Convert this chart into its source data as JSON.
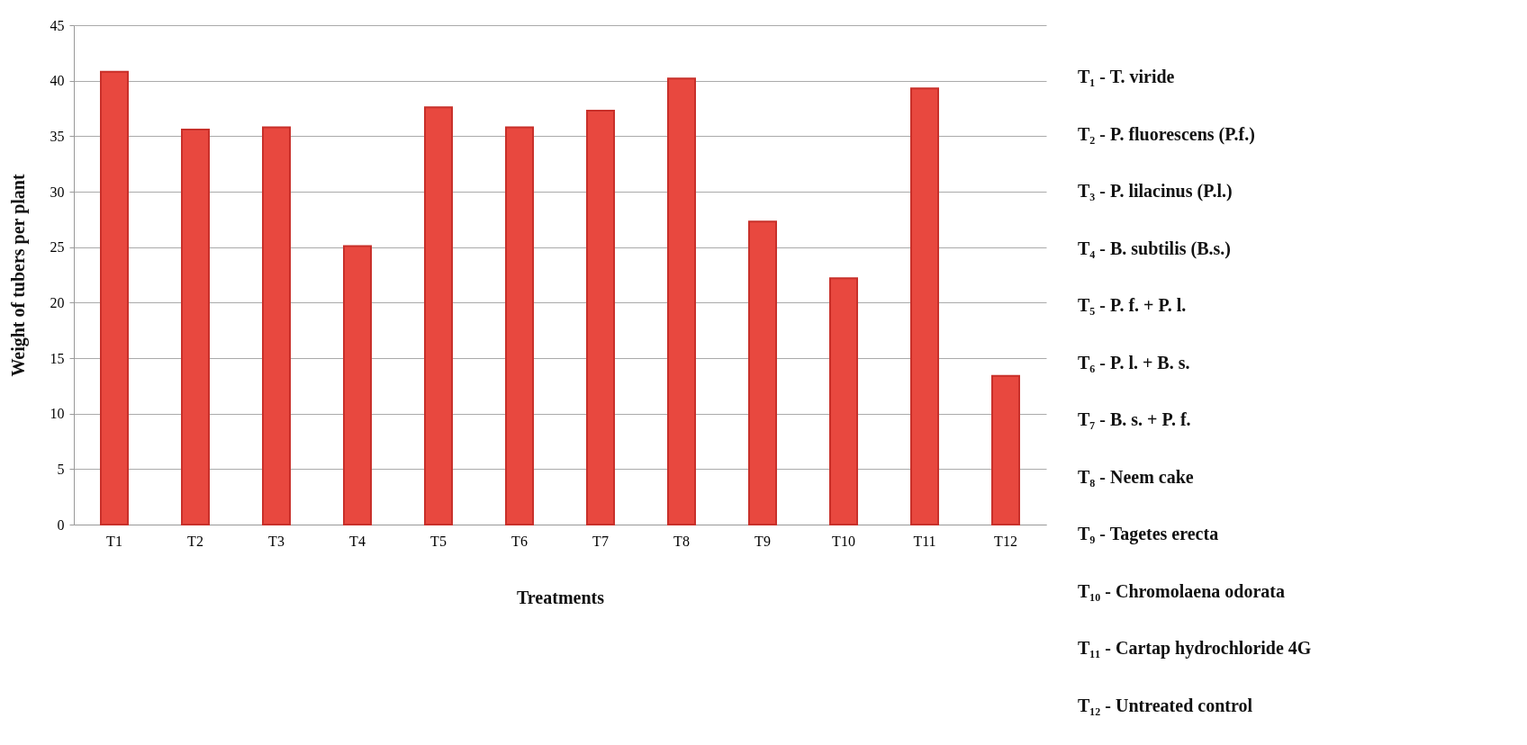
{
  "chart_data": {
    "type": "bar",
    "xlabel": "Treatments",
    "ylabel": "Weight of tubers per plant",
    "categories": [
      "T1",
      "T2",
      "T3",
      "T4",
      "T5",
      "T6",
      "T7",
      "T8",
      "T9",
      "T10",
      "T11",
      "T12"
    ],
    "values": [
      40.8,
      35.6,
      35.8,
      25.1,
      37.6,
      35.8,
      37.3,
      40.2,
      27.3,
      22.2,
      39.3,
      13.4
    ],
    "color": "#e8483f",
    "ylim": [
      0,
      45
    ],
    "yticks": [
      0,
      5,
      10,
      15,
      20,
      25,
      30,
      35,
      40,
      45
    ],
    "grid": "y",
    "annotations": [
      "T₁ - T. viride",
      "T₂ - P. fluorescens (P.f.)",
      "T₃ - P. lilacinus (P.l.)",
      "T₄ - B. subtilis (B.s.)",
      "T₅ - P. f. + P. l.",
      "T₆ - P. l. + B. s.",
      "T₇ - B. s. + P. f.",
      "T₈ - Neem cake",
      "T₉ - Tagetes erecta",
      "T₁₀ - Chromolaena odorata",
      "T₁₁ - Cartap hydrochloride 4G",
      "T₁₂ - Untreated control"
    ]
  }
}
